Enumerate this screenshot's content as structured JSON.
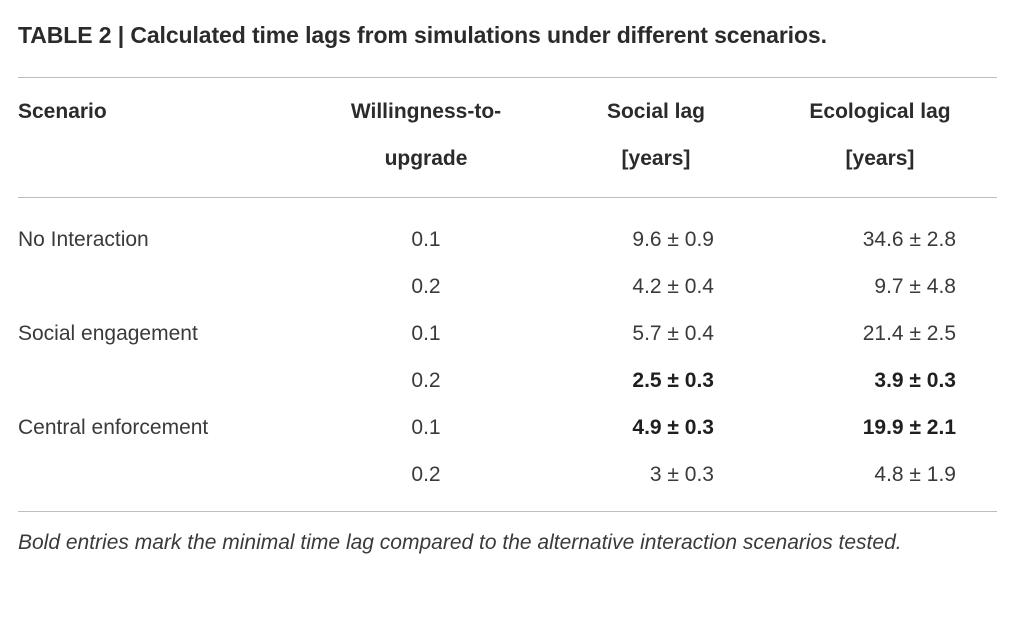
{
  "caption": "TABLE 2 | Calculated time lags from simulations under different scenarios.",
  "headers": {
    "scenario": "Scenario",
    "willingness_line1": "Willingness-to-",
    "willingness_line2": "upgrade",
    "social_line1": "Social lag",
    "social_line2": "[years]",
    "ecological_line1": "Ecological lag",
    "ecological_line2": "[years]"
  },
  "rows": [
    {
      "scenario": "No Interaction",
      "willingness": "0.1",
      "social": "9.6 ± 0.9",
      "ecological": "34.6 ± 2.8",
      "social_bold": false,
      "ecological_bold": false
    },
    {
      "scenario": "",
      "willingness": "0.2",
      "social": "4.2 ± 0.4",
      "ecological": "9.7 ± 4.8",
      "social_bold": false,
      "ecological_bold": false
    },
    {
      "scenario": "Social engagement",
      "willingness": "0.1",
      "social": "5.7 ± 0.4",
      "ecological": "21.4 ± 2.5",
      "social_bold": false,
      "ecological_bold": false
    },
    {
      "scenario": "",
      "willingness": "0.2",
      "social": "2.5 ± 0.3",
      "ecological": "3.9 ± 0.3",
      "social_bold": true,
      "ecological_bold": true
    },
    {
      "scenario": "Central enforcement",
      "willingness": "0.1",
      "social": "4.9 ± 0.3",
      "ecological": "19.9 ± 2.1",
      "social_bold": true,
      "ecological_bold": true
    },
    {
      "scenario": "",
      "willingness": "0.2",
      "social": "3 ± 0.3",
      "ecological": "4.8 ± 1.9",
      "social_bold": false,
      "ecological_bold": false
    }
  ],
  "footnote": "Bold entries mark the minimal time lag compared to the alternative interaction scenarios tested."
}
